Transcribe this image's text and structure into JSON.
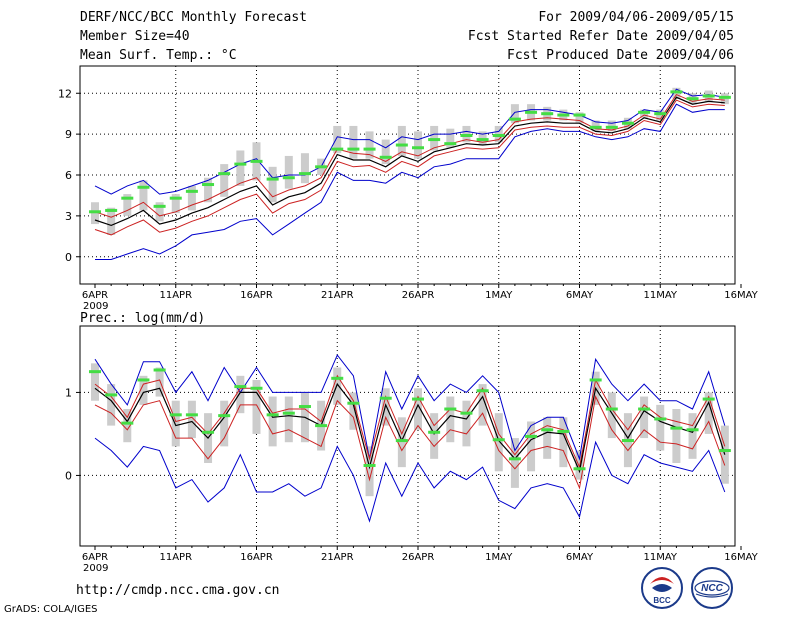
{
  "header": {
    "title": "DERF/NCC/BCC Monthly Forecast",
    "member_size": "Member Size=40",
    "variable_top": "Mean Surf. Temp.: °C",
    "period": "For 2009/04/06-2009/05/15",
    "start_date": "Fcst Started Refer Date 2009/04/05",
    "produced_date": "Fcst Produced Date 2009/04/06"
  },
  "footer": {
    "url": "http://cmdp.ncc.cma.gov.cn",
    "grads": "GrADS: COLA/IGES",
    "logo1_text": "BCC",
    "logo2_text": "NCC"
  },
  "colors": {
    "box": "#cccccc",
    "median": "#44dd44",
    "mean": "#000000",
    "spread": "#cc2222",
    "envelope": "#0000cc",
    "grid": "#000000"
  },
  "chart_data": [
    {
      "type": "line",
      "title": "Mean Surf. Temp.: °C",
      "x": [
        "6APR",
        "7APR",
        "8APR",
        "9APR",
        "10APR",
        "11APR",
        "12APR",
        "13APR",
        "14APR",
        "15APR",
        "16APR",
        "17APR",
        "18APR",
        "19APR",
        "20APR",
        "21APR",
        "22APR",
        "23APR",
        "24APR",
        "25APR",
        "26APR",
        "27APR",
        "28APR",
        "29APR",
        "30APR",
        "1MAY",
        "2MAY",
        "3MAY",
        "4MAY",
        "5MAY",
        "6MAY",
        "7MAY",
        "8MAY",
        "9MAY",
        "10MAY",
        "11MAY",
        "12MAY",
        "13MAY",
        "14MAY",
        "15MAY"
      ],
      "x_tick_labels": [
        "6APR",
        "11APR",
        "16APR",
        "21APR",
        "26APR",
        "1MAY",
        "6MAY",
        "11MAY",
        "16MAY"
      ],
      "x_year_label": "2009",
      "ylim": [
        -2,
        14
      ],
      "yticks": [
        0,
        3,
        6,
        9,
        12
      ],
      "series": [
        {
          "name": "envelope_max",
          "values": [
            5.2,
            4.6,
            5.2,
            5.6,
            4.6,
            4.8,
            5.2,
            5.6,
            6.2,
            6.8,
            7.2,
            5.8,
            6.0,
            6.0,
            6.6,
            8.8,
            8.6,
            8.6,
            8.0,
            8.8,
            8.6,
            9.0,
            9.0,
            9.2,
            9.0,
            9.2,
            10.6,
            10.8,
            10.8,
            10.6,
            10.4,
            9.9,
            9.8,
            10.0,
            10.8,
            10.6,
            12.3,
            11.8,
            11.9,
            11.7
          ]
        },
        {
          "name": "upper_spread",
          "values": [
            3.3,
            2.9,
            3.4,
            4.0,
            3.0,
            3.3,
            3.8,
            4.2,
            4.8,
            5.4,
            5.8,
            4.4,
            4.9,
            5.2,
            5.8,
            7.9,
            7.6,
            7.5,
            7.0,
            7.7,
            7.4,
            8.0,
            8.3,
            8.6,
            8.4,
            8.6,
            9.9,
            10.1,
            10.2,
            10.1,
            10.0,
            9.4,
            9.3,
            9.6,
            10.4,
            10.1,
            11.9,
            11.4,
            11.6,
            11.5
          ]
        },
        {
          "name": "ensemble_mean",
          "values": [
            2.7,
            2.3,
            2.8,
            3.4,
            2.4,
            2.7,
            3.2,
            3.6,
            4.2,
            4.8,
            5.2,
            3.8,
            4.4,
            4.7,
            5.4,
            7.5,
            7.1,
            7.1,
            6.6,
            7.4,
            7.0,
            7.7,
            8.0,
            8.3,
            8.2,
            8.3,
            9.6,
            9.8,
            9.9,
            9.8,
            9.8,
            9.2,
            9.1,
            9.4,
            10.2,
            9.9,
            11.7,
            11.2,
            11.4,
            11.3
          ]
        },
        {
          "name": "lower_spread",
          "values": [
            2.0,
            1.6,
            2.2,
            2.7,
            1.8,
            2.1,
            2.6,
            3.0,
            3.6,
            4.2,
            4.6,
            3.2,
            3.9,
            4.2,
            4.9,
            7.0,
            6.6,
            6.7,
            6.2,
            7.0,
            6.6,
            7.4,
            7.7,
            8.0,
            7.9,
            8.0,
            9.3,
            9.5,
            9.6,
            9.5,
            9.5,
            9.0,
            8.9,
            9.2,
            10.0,
            9.7,
            11.5,
            11.0,
            11.2,
            11.1
          ]
        },
        {
          "name": "envelope_min",
          "values": [
            -0.2,
            -0.2,
            0.2,
            0.6,
            0.2,
            0.8,
            1.6,
            1.8,
            2.0,
            2.6,
            2.8,
            1.6,
            2.4,
            3.2,
            4.0,
            6.2,
            5.6,
            5.6,
            5.4,
            6.2,
            5.8,
            6.6,
            6.8,
            7.2,
            7.2,
            7.2,
            8.8,
            9.2,
            9.4,
            9.2,
            9.2,
            8.8,
            8.6,
            8.8,
            9.4,
            9.2,
            11.2,
            10.6,
            10.8,
            10.8
          ]
        },
        {
          "name": "median",
          "values": [
            3.3,
            3.4,
            4.3,
            5.1,
            3.7,
            4.3,
            4.8,
            5.3,
            6.1,
            6.8,
            7.0,
            5.7,
            5.8,
            6.1,
            6.6,
            7.9,
            7.9,
            7.9,
            7.3,
            8.2,
            8.0,
            8.6,
            8.3,
            8.9,
            8.6,
            8.9,
            10.1,
            10.6,
            10.5,
            10.4,
            10.4,
            9.5,
            9.5,
            9.8,
            10.6,
            10.5,
            12.1,
            11.6,
            11.8,
            11.7
          ]
        },
        {
          "name": "box_high",
          "values": [
            4.0,
            3.6,
            4.6,
            5.6,
            4.0,
            4.6,
            5.2,
            5.8,
            6.8,
            7.8,
            8.4,
            6.6,
            7.4,
            7.6,
            7.2,
            9.6,
            9.6,
            9.2,
            8.6,
            9.6,
            9.2,
            9.6,
            9.4,
            9.6,
            9.2,
            9.6,
            11.2,
            11.2,
            11.0,
            10.8,
            10.6,
            10.0,
            10.0,
            10.2,
            10.8,
            10.8,
            12.4,
            12.0,
            12.2,
            12.0
          ]
        },
        {
          "name": "box_low",
          "values": [
            2.4,
            1.6,
            3.0,
            3.4,
            2.6,
            3.2,
            3.4,
            4.0,
            4.4,
            5.2,
            5.6,
            4.0,
            5.0,
            5.4,
            6.0,
            7.6,
            7.2,
            7.2,
            6.8,
            7.4,
            7.2,
            7.8,
            8.0,
            8.4,
            8.2,
            8.4,
            9.8,
            10.0,
            10.0,
            10.0,
            9.8,
            9.2,
            9.2,
            9.4,
            10.2,
            10.0,
            11.6,
            11.2,
            11.4,
            11.2
          ]
        }
      ]
    },
    {
      "type": "line",
      "title": "Prec.: log(mm/d)",
      "x": [
        "6APR",
        "7APR",
        "8APR",
        "9APR",
        "10APR",
        "11APR",
        "12APR",
        "13APR",
        "14APR",
        "15APR",
        "16APR",
        "17APR",
        "18APR",
        "19APR",
        "20APR",
        "21APR",
        "22APR",
        "23APR",
        "24APR",
        "25APR",
        "26APR",
        "27APR",
        "28APR",
        "29APR",
        "30APR",
        "1MAY",
        "2MAY",
        "3MAY",
        "4MAY",
        "5MAY",
        "6MAY",
        "7MAY",
        "8MAY",
        "9MAY",
        "10MAY",
        "11MAY",
        "12MAY",
        "13MAY",
        "14MAY",
        "15MAY"
      ],
      "x_tick_labels": [
        "6APR",
        "11APR",
        "16APR",
        "21APR",
        "26APR",
        "1MAY",
        "6MAY",
        "11MAY",
        "16MAY"
      ],
      "x_year_label": "2009",
      "ylim": [
        -0.85,
        1.8
      ],
      "yticks": [
        0,
        1
      ],
      "series": [
        {
          "name": "envelope_max",
          "values": [
            1.4,
            1.1,
            0.85,
            1.37,
            1.37,
            1.0,
            1.25,
            0.9,
            1.3,
            1.0,
            1.3,
            1.0,
            1.0,
            1.0,
            1.0,
            1.45,
            1.2,
            0.2,
            1.25,
            0.8,
            1.2,
            0.9,
            1.1,
            1.0,
            1.2,
            1.0,
            0.3,
            0.6,
            0.7,
            0.7,
            0.2,
            1.4,
            1.1,
            0.9,
            1.1,
            0.9,
            0.9,
            0.8,
            1.25,
            0.6
          ]
        },
        {
          "name": "upper_spread",
          "values": [
            1.1,
            0.95,
            0.7,
            1.1,
            1.15,
            0.65,
            0.7,
            0.5,
            0.75,
            1.05,
            1.05,
            0.75,
            0.8,
            0.8,
            0.65,
            1.2,
            0.9,
            0.2,
            0.95,
            0.5,
            0.95,
            0.6,
            0.8,
            0.75,
            1.05,
            0.5,
            0.25,
            0.5,
            0.6,
            0.55,
            0.1,
            1.15,
            0.8,
            0.55,
            0.85,
            0.7,
            0.65,
            0.6,
            0.95,
            0.35
          ]
        },
        {
          "name": "ensemble_mean",
          "values": [
            1.05,
            0.9,
            0.65,
            1.0,
            1.05,
            0.6,
            0.65,
            0.45,
            0.7,
            1.0,
            1.0,
            0.7,
            0.72,
            0.7,
            0.6,
            1.1,
            0.85,
            0.1,
            0.85,
            0.42,
            0.85,
            0.5,
            0.72,
            0.68,
            0.95,
            0.42,
            0.2,
            0.43,
            0.52,
            0.5,
            0.05,
            1.05,
            0.75,
            0.45,
            0.78,
            0.65,
            0.58,
            0.52,
            0.88,
            0.25
          ]
        },
        {
          "name": "lower_spread",
          "values": [
            0.85,
            0.75,
            0.55,
            0.85,
            0.9,
            0.45,
            0.45,
            0.2,
            0.45,
            0.85,
            0.85,
            0.5,
            0.55,
            0.45,
            0.35,
            0.9,
            0.7,
            -0.05,
            0.7,
            0.3,
            0.6,
            0.35,
            0.55,
            0.5,
            0.75,
            0.3,
            0.08,
            0.3,
            0.35,
            0.3,
            -0.15,
            0.95,
            0.55,
            0.3,
            0.55,
            0.4,
            0.38,
            0.32,
            0.65,
            0.12
          ]
        },
        {
          "name": "envelope_min",
          "values": [
            0.45,
            0.3,
            0.1,
            0.35,
            0.3,
            -0.15,
            -0.05,
            -0.32,
            -0.15,
            0.25,
            -0.2,
            -0.2,
            -0.1,
            -0.25,
            -0.15,
            0.35,
            0.0,
            -0.55,
            0.15,
            -0.25,
            0.15,
            -0.15,
            0.05,
            -0.05,
            0.1,
            -0.3,
            -0.4,
            -0.15,
            -0.1,
            -0.15,
            -0.5,
            0.4,
            0.0,
            -0.1,
            0.25,
            0.15,
            0.1,
            0.05,
            0.3,
            -0.2
          ]
        },
        {
          "name": "median",
          "values": [
            1.25,
            0.97,
            0.63,
            1.15,
            1.27,
            0.73,
            0.73,
            0.52,
            0.72,
            1.07,
            1.05,
            0.73,
            0.75,
            0.83,
            0.6,
            1.17,
            0.87,
            0.12,
            0.93,
            0.42,
            0.92,
            0.52,
            0.8,
            0.75,
            1.02,
            0.43,
            0.2,
            0.47,
            0.55,
            0.53,
            0.08,
            1.15,
            0.8,
            0.42,
            0.8,
            0.68,
            0.57,
            0.55,
            0.92,
            0.3
          ]
        },
        {
          "name": "box_high",
          "values": [
            1.35,
            1.1,
            0.8,
            1.2,
            1.3,
            0.9,
            0.9,
            0.75,
            0.9,
            1.2,
            1.15,
            0.95,
            0.95,
            1.0,
            0.9,
            1.3,
            1.0,
            0.35,
            1.05,
            0.7,
            1.05,
            0.75,
            0.95,
            0.9,
            1.1,
            0.75,
            0.45,
            0.65,
            0.7,
            0.7,
            0.3,
            1.25,
            1.0,
            0.75,
            0.95,
            0.85,
            0.8,
            0.75,
            1.0,
            0.6
          ]
        },
        {
          "name": "box_low",
          "values": [
            0.9,
            0.6,
            0.4,
            0.85,
            0.95,
            0.35,
            0.45,
            0.15,
            0.35,
            0.75,
            0.5,
            0.35,
            0.4,
            0.4,
            0.3,
            0.85,
            0.55,
            -0.25,
            0.6,
            0.1,
            0.55,
            0.2,
            0.4,
            0.35,
            0.6,
            0.05,
            -0.15,
            0.05,
            0.2,
            0.1,
            -0.05,
            0.85,
            0.45,
            0.1,
            0.45,
            0.3,
            0.15,
            0.2,
            0.5,
            -0.1
          ]
        }
      ]
    }
  ]
}
